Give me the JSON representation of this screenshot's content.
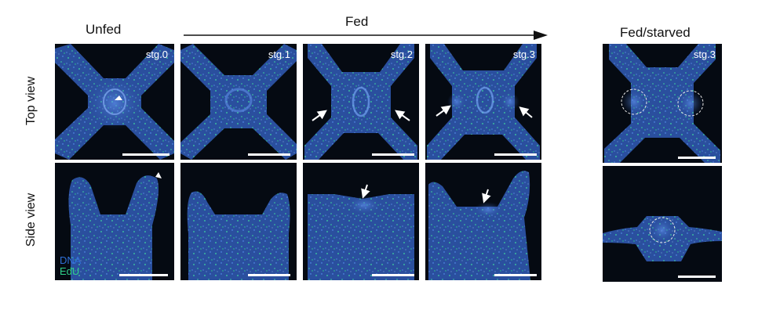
{
  "headers": {
    "unfed": "Unfed",
    "fed": "Fed",
    "fed_starved": "Fed/starved"
  },
  "row_labels": {
    "top": "Top view",
    "side": "Side view"
  },
  "stages": [
    "stg.0",
    "stg.1",
    "stg.2",
    "stg.3",
    "stg.3"
  ],
  "legend": {
    "dna": "DNA",
    "edu": "EdU",
    "dna_color": "#2f6fd6",
    "edu_color": "#2fd08a"
  },
  "colors": {
    "panel_bg": "#050a12",
    "tissue": "#2a4f9e",
    "tissue_light": "#3e6cc8",
    "speckle": "#3fd6a0",
    "arrow": "#ffffff"
  }
}
